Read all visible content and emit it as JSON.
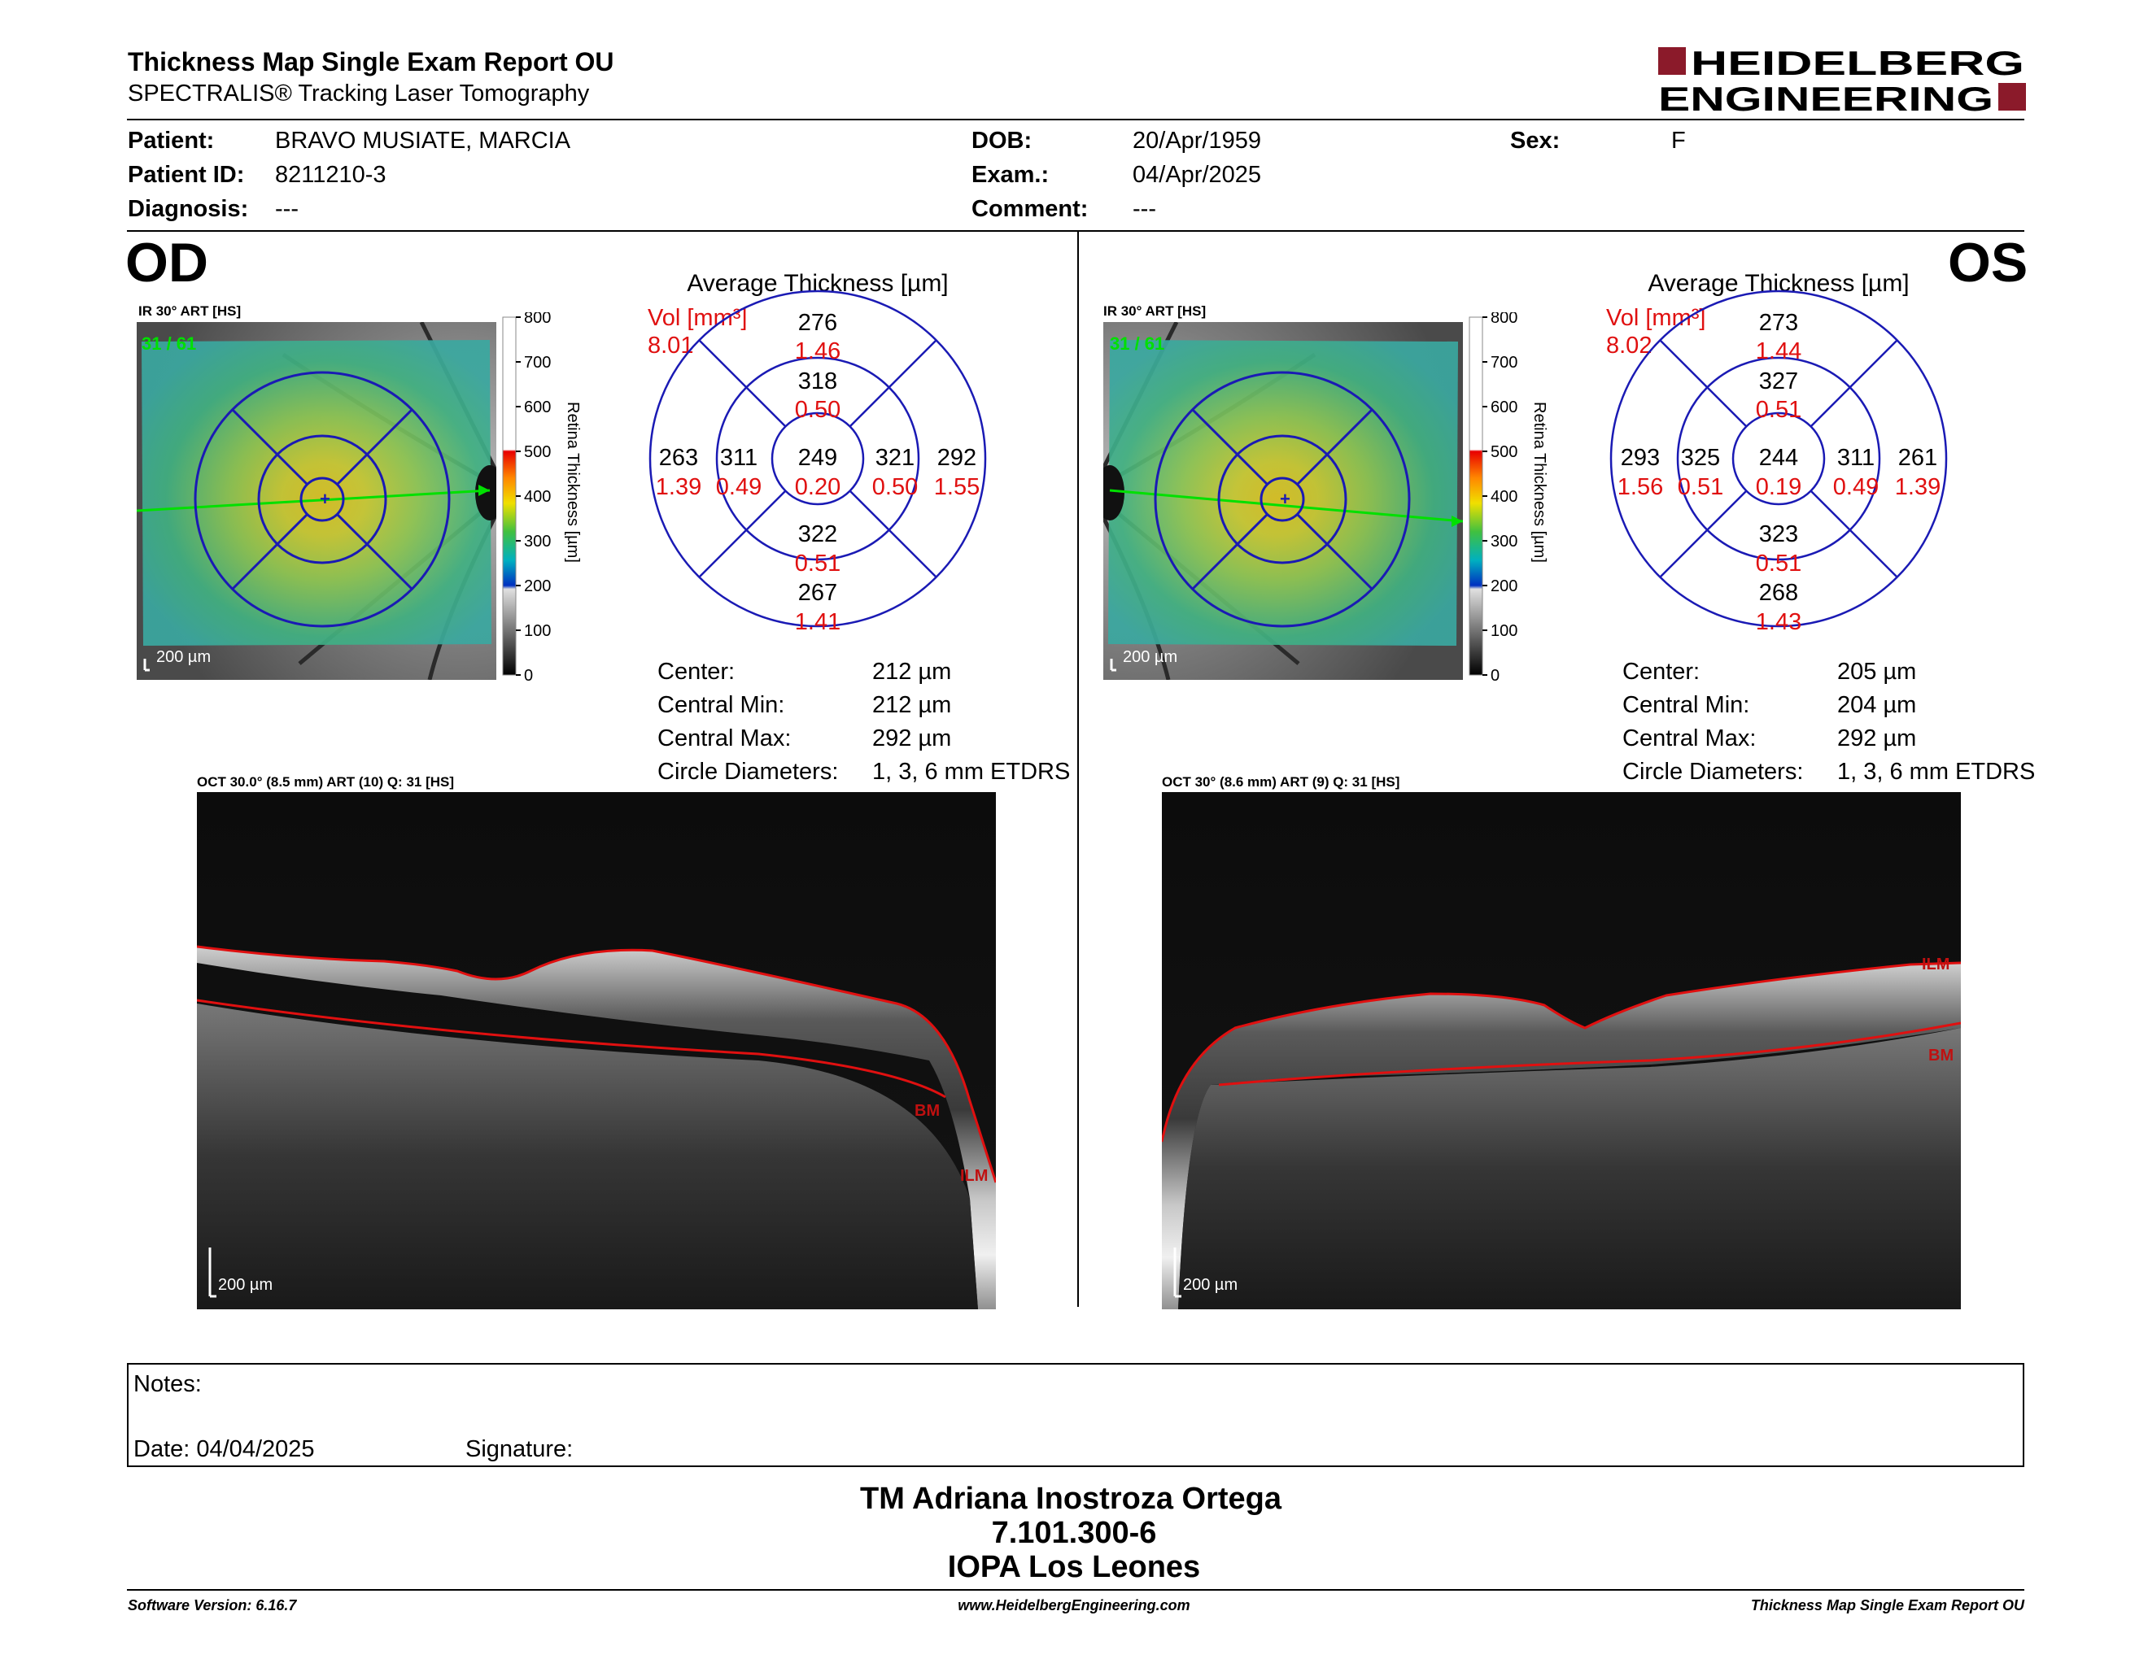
{
  "header": {
    "title": "Thickness Map Single Exam Report OU",
    "subtitle": "SPECTRALIS® Tracking Laser Tomography",
    "logo_line1": "HEIDELBERG",
    "logo_line2": "ENGINEERING"
  },
  "patient": {
    "patient_label": "Patient:",
    "patient_value": "BRAVO MUSIATE, MARCIA",
    "id_label": "Patient ID:",
    "id_value": "8211210-3",
    "diagnosis_label": "Diagnosis:",
    "diagnosis_value": "---",
    "dob_label": "DOB:",
    "dob_value": "20/Apr/1959",
    "exam_label": "Exam.:",
    "exam_value": "04/Apr/2025",
    "comment_label": "Comment:",
    "comment_value": "---",
    "sex_label": "Sex:",
    "sex_value": "F"
  },
  "colors": {
    "ring": "#1a1ab4",
    "volume": "#e01010",
    "segmentation": "#e01010",
    "arrow": "#00e000"
  },
  "od": {
    "eye_label": "OD",
    "ir_label": "IR 30° ART [HS]",
    "ir_counter": "31 / 61",
    "scale_bar": "200 µm",
    "colorbar_ticks": [
      "800",
      "700",
      "600",
      "500",
      "400",
      "300",
      "200",
      "100",
      "0"
    ],
    "colorbar_title": "Retina  Thickness [µm]",
    "avg_title": "Average Thickness [µm]",
    "vol_label": "Vol [mm³]",
    "vol_total": "8.01",
    "sectors": {
      "outer_sup": {
        "t": "276",
        "v": "1.46"
      },
      "inner_sup": {
        "t": "318",
        "v": "0.50"
      },
      "outer_temp": {
        "t": "263",
        "v": "1.39"
      },
      "inner_temp": {
        "t": "311",
        "v": "0.49"
      },
      "center": {
        "t": "249",
        "v": "0.20"
      },
      "inner_nas": {
        "t": "321",
        "v": "0.50"
      },
      "outer_nas": {
        "t": "292",
        "v": "1.55"
      },
      "inner_inf": {
        "t": "322",
        "v": "0.51"
      },
      "outer_inf": {
        "t": "267",
        "v": "1.41"
      }
    },
    "stats": {
      "center_label": "Center:",
      "center_value": "212 µm",
      "min_label": "Central Min:",
      "min_value": "212 µm",
      "max_label": "Central Max:",
      "max_value": "292 µm",
      "diam_label": "Circle Diameters:",
      "diam_value": "1, 3, 6 mm ETDRS"
    },
    "oct_label": "OCT 30.0° (8.5 mm) ART (10) Q: 31 [HS]",
    "oct_scale": "200 µm",
    "seg_ilm": "ILM",
    "seg_bm": "BM"
  },
  "os": {
    "eye_label": "OS",
    "ir_label": "IR 30° ART [HS]",
    "ir_counter": "31 / 61",
    "scale_bar": "200 µm",
    "colorbar_ticks": [
      "800",
      "700",
      "600",
      "500",
      "400",
      "300",
      "200",
      "100",
      "0"
    ],
    "colorbar_title": "Retina  Thickness [µm]",
    "avg_title": "Average Thickness [µm]",
    "vol_label": "Vol [mm³]",
    "vol_total": "8.02",
    "sectors": {
      "outer_sup": {
        "t": "273",
        "v": "1.44"
      },
      "inner_sup": {
        "t": "327",
        "v": "0.51"
      },
      "outer_temp": {
        "t": "293",
        "v": "1.56"
      },
      "inner_temp": {
        "t": "325",
        "v": "0.51"
      },
      "center": {
        "t": "244",
        "v": "0.19"
      },
      "inner_nas": {
        "t": "311",
        "v": "0.49"
      },
      "outer_nas": {
        "t": "261",
        "v": "1.39"
      },
      "inner_inf": {
        "t": "323",
        "v": "0.51"
      },
      "outer_inf": {
        "t": "268",
        "v": "1.43"
      }
    },
    "stats": {
      "center_label": "Center:",
      "center_value": "205 µm",
      "min_label": "Central Min:",
      "min_value": "204 µm",
      "max_label": "Central Max:",
      "max_value": "292 µm",
      "diam_label": "Circle Diameters:",
      "diam_value": "1, 3, 6 mm ETDRS"
    },
    "oct_label": "OCT 30° (8.6 mm) ART (9) Q: 31 [HS]",
    "oct_scale": "200 µm",
    "seg_ilm": "ILM",
    "seg_bm": "BM"
  },
  "notes": {
    "notes_label": "Notes:",
    "date_label": "Date: 04/04/2025",
    "signature_label": "Signature:"
  },
  "signer": {
    "name": "TM Adriana Inostroza Ortega",
    "id": "7.101.300-6",
    "org": "IOPA Los Leones"
  },
  "footer": {
    "version": "Software Version: 6.16.7",
    "website": "www.HeidelbergEngineering.com",
    "report": "Thickness Map Single Exam Report OU"
  }
}
